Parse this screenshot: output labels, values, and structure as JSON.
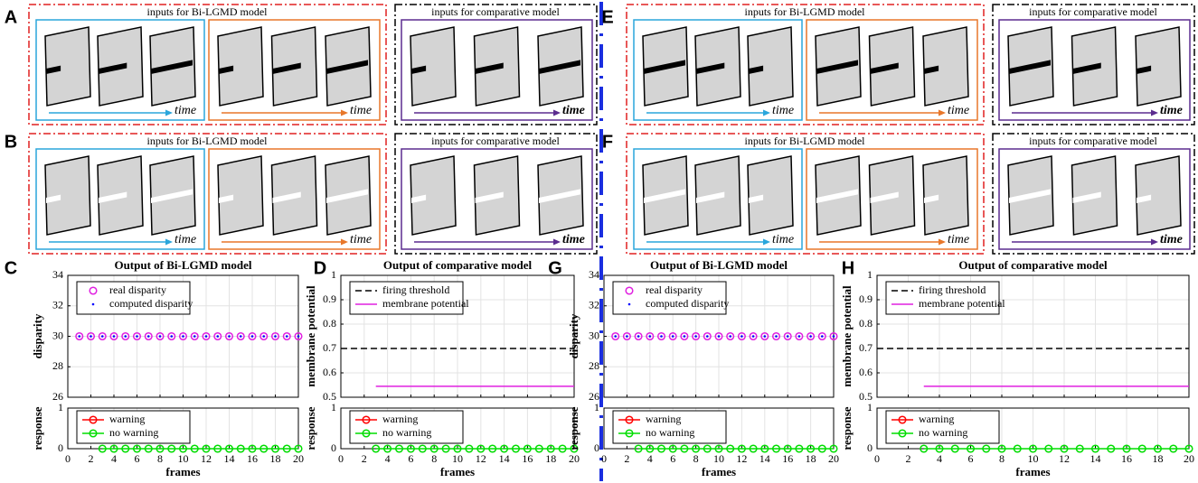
{
  "panels": [
    "A",
    "B",
    "C",
    "D",
    "E",
    "F",
    "G",
    "H"
  ],
  "stimuli": [
    {
      "title_left": "inputs for Bi-LGMD model",
      "title_right": "inputs for comparative model",
      "time_labels": [
        "time",
        "time",
        "time"
      ],
      "bar_color": "#000000",
      "bar_direction": "grow"
    },
    {
      "title_left": "inputs for Bi-LGMD model",
      "title_right": "inputs for comparative model",
      "time_labels": [
        "time",
        "time",
        "time"
      ],
      "bar_color": "#ffffff",
      "bar_direction": "grow"
    },
    {
      "title_left": "inputs for Bi-LGMD model",
      "title_right": "inputs for comparative model",
      "time_labels": [
        "time",
        "time",
        "time"
      ],
      "bar_color": "#000000",
      "bar_direction": "shrink"
    },
    {
      "title_left": "inputs for Bi-LGMD model",
      "title_right": "inputs for comparative model",
      "time_labels": [
        "time",
        "time",
        "time"
      ],
      "bar_color": "#ffffff",
      "bar_direction": "shrink"
    }
  ],
  "chart_data": [
    {
      "type": "scatter",
      "title": "Output of Bi-LGMD model",
      "ylabel": "disparity",
      "xlim": [
        0,
        20
      ],
      "ylim": [
        26,
        34
      ],
      "xticks": [
        0,
        2,
        4,
        6,
        8,
        10,
        12,
        14,
        16,
        18,
        20
      ],
      "yticks": [
        26,
        28,
        30,
        32,
        34
      ],
      "show_xtick_labels": false,
      "grid": true,
      "legend": "upper left",
      "series": [
        {
          "name": "real disparity",
          "color": "#e020e0",
          "marker": "o",
          "x": [
            1,
            2,
            3,
            4,
            5,
            6,
            7,
            8,
            9,
            10,
            11,
            12,
            13,
            14,
            15,
            16,
            17,
            18,
            19,
            20
          ],
          "values": [
            30,
            30,
            30,
            30,
            30,
            30,
            30,
            30,
            30,
            30,
            30,
            30,
            30,
            30,
            30,
            30,
            30,
            30,
            30,
            30
          ]
        },
        {
          "name": "computed disparity",
          "color": "#0000ff",
          "marker": ".",
          "x": [
            1,
            2,
            3,
            4,
            5,
            6,
            7,
            8,
            9,
            10,
            11,
            12,
            13,
            14,
            15,
            16,
            17,
            18,
            19,
            20
          ],
          "values": [
            30,
            30,
            30,
            30,
            30,
            30,
            30,
            30,
            30,
            30,
            30,
            30,
            30,
            30,
            30,
            30,
            30,
            30,
            30,
            30
          ]
        }
      ]
    },
    {
      "type": "line",
      "ylabel": "response",
      "xlabel": "frames",
      "xlim": [
        0,
        20
      ],
      "ylim": [
        0,
        1
      ],
      "xticks": [
        0,
        2,
        4,
        6,
        8,
        10,
        12,
        14,
        16,
        18,
        20
      ],
      "yticks": [
        0,
        1
      ],
      "show_xtick_labels": true,
      "grid": true,
      "legend": "upper left",
      "series": [
        {
          "name": "warning",
          "color": "#ff0000",
          "marker": "o",
          "x": [],
          "values": []
        },
        {
          "name": "no warning",
          "color": "#00dd00",
          "marker": "o",
          "x": [
            3,
            4,
            5,
            6,
            7,
            8,
            9,
            10,
            11,
            12,
            13,
            14,
            15,
            16,
            17,
            18,
            19,
            20
          ],
          "values": [
            0,
            0,
            0,
            0,
            0,
            0,
            0,
            0,
            0,
            0,
            0,
            0,
            0,
            0,
            0,
            0,
            0,
            0
          ]
        }
      ]
    },
    {
      "type": "line",
      "title": "Output of comparative model",
      "ylabel": "membrane potential",
      "xlim": [
        0,
        20
      ],
      "ylim": [
        0.5,
        1
      ],
      "xticks": [
        0,
        2,
        4,
        6,
        8,
        10,
        12,
        14,
        16,
        18,
        20
      ],
      "yticks": [
        0.5,
        0.6,
        0.7,
        0.8,
        0.9,
        1
      ],
      "show_xtick_labels": false,
      "grid": true,
      "legend": "upper left",
      "series": [
        {
          "name": "firing threshold",
          "color": "#000000",
          "dash": true,
          "x": [
            0,
            20
          ],
          "values": [
            0.7,
            0.7
          ]
        },
        {
          "name": "membrane potential",
          "color": "#e020e0",
          "x": [
            3,
            20
          ],
          "values": [
            0.545,
            0.545
          ]
        }
      ]
    },
    {
      "type": "line",
      "ylabel": "response",
      "xlabel": "frames",
      "xlim": [
        0,
        20
      ],
      "ylim": [
        0,
        1
      ],
      "xticks": [
        0,
        2,
        4,
        6,
        8,
        10,
        12,
        14,
        16,
        18,
        20
      ],
      "yticks": [
        0,
        1
      ],
      "show_xtick_labels": true,
      "grid": true,
      "legend": "upper left",
      "series": [
        {
          "name": "warning",
          "color": "#ff0000",
          "marker": "o",
          "x": [],
          "values": []
        },
        {
          "name": "no warning",
          "color": "#00dd00",
          "marker": "o",
          "x": [
            3,
            4,
            5,
            6,
            7,
            8,
            9,
            10,
            11,
            12,
            13,
            14,
            15,
            16,
            17,
            18,
            19,
            20
          ],
          "values": [
            0,
            0,
            0,
            0,
            0,
            0,
            0,
            0,
            0,
            0,
            0,
            0,
            0,
            0,
            0,
            0,
            0,
            0
          ]
        }
      ]
    },
    {
      "type": "scatter",
      "title": "Output of Bi-LGMD model",
      "ylabel": "disparity",
      "xlim": [
        0,
        20
      ],
      "ylim": [
        26,
        34
      ],
      "xticks": [
        0,
        2,
        4,
        6,
        8,
        10,
        12,
        14,
        16,
        18,
        20
      ],
      "yticks": [
        26,
        28,
        30,
        32,
        34
      ],
      "show_xtick_labels": false,
      "grid": true,
      "legend": "upper left",
      "series": [
        {
          "name": "real disparity",
          "color": "#e020e0",
          "marker": "o",
          "x": [
            1,
            2,
            3,
            4,
            5,
            6,
            7,
            8,
            9,
            10,
            11,
            12,
            13,
            14,
            15,
            16,
            17,
            18,
            19,
            20
          ],
          "values": [
            30,
            30,
            30,
            30,
            30,
            30,
            30,
            30,
            30,
            30,
            30,
            30,
            30,
            30,
            30,
            30,
            30,
            30,
            30,
            30
          ]
        },
        {
          "name": "computed disparity",
          "color": "#0000ff",
          "marker": ".",
          "x": [
            1,
            2,
            3,
            4,
            5,
            6,
            7,
            8,
            9,
            10,
            11,
            12,
            13,
            14,
            15,
            16,
            17,
            18,
            19,
            20
          ],
          "values": [
            30,
            30,
            30,
            30,
            30,
            30,
            30,
            30,
            30,
            30,
            30,
            30,
            30,
            30,
            30,
            30,
            30,
            30,
            30,
            30
          ]
        }
      ]
    },
    {
      "type": "line",
      "ylabel": "response",
      "xlabel": "frames",
      "xlim": [
        0,
        20
      ],
      "ylim": [
        0,
        1
      ],
      "xticks": [
        0,
        2,
        4,
        6,
        8,
        10,
        12,
        14,
        16,
        18,
        20
      ],
      "yticks": [
        0,
        1
      ],
      "show_xtick_labels": true,
      "grid": true,
      "legend": "upper left",
      "series": [
        {
          "name": "warning",
          "color": "#ff0000",
          "marker": "o",
          "x": [],
          "values": []
        },
        {
          "name": "no warning",
          "color": "#00dd00",
          "marker": "o",
          "x": [
            3,
            4,
            5,
            6,
            7,
            8,
            9,
            10,
            11,
            12,
            13,
            14,
            15,
            16,
            17,
            18,
            19,
            20
          ],
          "values": [
            0,
            0,
            0,
            0,
            0,
            0,
            0,
            0,
            0,
            0,
            0,
            0,
            0,
            0,
            0,
            0,
            0,
            0
          ]
        }
      ]
    },
    {
      "type": "line",
      "title": "Output of comparative model",
      "ylabel": "membrane potential",
      "xlim": [
        0,
        20
      ],
      "ylim": [
        0.5,
        1
      ],
      "xticks": [
        0,
        2,
        4,
        6,
        8,
        10,
        12,
        14,
        16,
        18,
        20
      ],
      "yticks": [
        0.5,
        0.6,
        0.7,
        0.8,
        0.9,
        1
      ],
      "show_xtick_labels": false,
      "grid": true,
      "legend": "upper left",
      "series": [
        {
          "name": "firing threshold",
          "color": "#000000",
          "dash": true,
          "x": [
            0,
            20
          ],
          "values": [
            0.7,
            0.7
          ]
        },
        {
          "name": "membrane potential",
          "color": "#e020e0",
          "x": [
            3,
            20
          ],
          "values": [
            0.545,
            0.545
          ]
        }
      ]
    },
    {
      "type": "line",
      "ylabel": "response",
      "xlabel": "frames",
      "xlim": [
        0,
        20
      ],
      "ylim": [
        0,
        1
      ],
      "xticks": [
        0,
        2,
        4,
        6,
        8,
        10,
        12,
        14,
        16,
        18,
        20
      ],
      "yticks": [
        0,
        1
      ],
      "show_xtick_labels": true,
      "grid": true,
      "legend": "upper left",
      "series": [
        {
          "name": "warning",
          "color": "#ff0000",
          "marker": "o",
          "x": [],
          "values": []
        },
        {
          "name": "no warning",
          "color": "#00dd00",
          "marker": "o",
          "x": [
            3,
            4,
            5,
            6,
            7,
            8,
            9,
            10,
            11,
            12,
            13,
            14,
            15,
            16,
            17,
            18,
            19,
            20
          ],
          "values": [
            0,
            0,
            0,
            0,
            0,
            0,
            0,
            0,
            0,
            0,
            0,
            0,
            0,
            0,
            0,
            0,
            0,
            0
          ]
        }
      ]
    }
  ]
}
